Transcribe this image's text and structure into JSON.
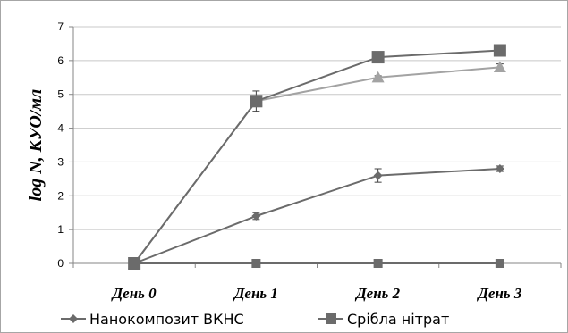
{
  "chart_data": {
    "type": "line",
    "categories": [
      "День 0",
      "День 1",
      "День 2",
      "День 3"
    ],
    "ylabel": "log N, КУО/мл",
    "xlabel": "",
    "ylim": [
      0,
      7
    ],
    "yticks": [
      "0",
      "1",
      "2",
      "3",
      "4",
      "5",
      "6",
      "7"
    ],
    "grid": true,
    "series": [
      {
        "name": "Нанокомпозит ВКНС",
        "marker": "diamond",
        "color": "#6b6b6b",
        "values": [
          0,
          1.4,
          2.6,
          2.8
        ],
        "errors": [
          0,
          0.1,
          0.2,
          0.08
        ],
        "marker_size": "small"
      },
      {
        "name": "Срібла нітрат",
        "marker": "square",
        "color": "#6b6b6b",
        "values": [
          0,
          0,
          0,
          0
        ],
        "errors": [
          0,
          0,
          0,
          0
        ],
        "marker_size": "small"
      },
      {
        "name": "",
        "marker": "square",
        "color": "#6b6b6b",
        "values": [
          0,
          4.8,
          6.1,
          6.3
        ],
        "errors": [
          0,
          0.3,
          0,
          0
        ],
        "marker_size": "large"
      },
      {
        "name": "",
        "marker": "triangle",
        "color": "#a3a3a3",
        "values": [
          0,
          4.8,
          5.5,
          5.8
        ],
        "errors": [
          0,
          0.05,
          0.05,
          0.1
        ],
        "marker_size": "large"
      }
    ],
    "legend": "bottom-left"
  }
}
